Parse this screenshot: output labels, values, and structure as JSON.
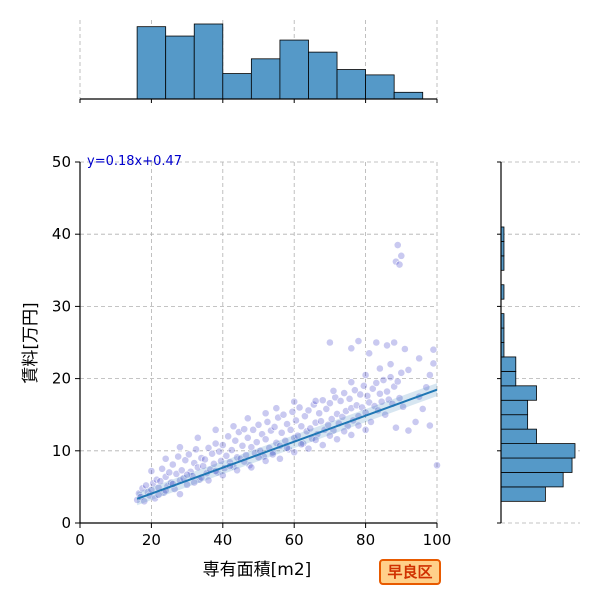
{
  "badge_label": "早良区",
  "chart_data": {
    "type": "scatter",
    "xlabel": "専有面積[m2]",
    "ylabel": "賃料[万円]",
    "xlim": [
      0,
      100
    ],
    "ylim": [
      0,
      50
    ],
    "xticks": [
      0,
      20,
      40,
      60,
      80,
      100
    ],
    "yticks": [
      0,
      10,
      20,
      30,
      40,
      50
    ],
    "grid": true,
    "annotation": "y=0.18x+0.47",
    "regression": {
      "slope": 0.18,
      "intercept": 0.47,
      "x_range": [
        16,
        100
      ]
    },
    "colors": {
      "points": "#3c3cc8",
      "line": "#1f77b4",
      "hist": "#5599c8"
    },
    "points": [
      [
        16,
        3.2
      ],
      [
        16.5,
        4.1
      ],
      [
        17,
        3.6
      ],
      [
        17.5,
        4.8
      ],
      [
        18,
        3.0
      ],
      [
        18.5,
        5.2
      ],
      [
        19,
        4.3
      ],
      [
        19.5,
        3.8
      ],
      [
        20,
        4.6
      ],
      [
        20.5,
        5.5
      ],
      [
        21,
        3.4
      ],
      [
        21.5,
        6.0
      ],
      [
        22,
        4.9
      ],
      [
        22.5,
        5.8
      ],
      [
        23,
        7.5
      ],
      [
        23.5,
        4.2
      ],
      [
        24,
        6.4
      ],
      [
        24.5,
        5.1
      ],
      [
        25,
        7.0
      ],
      [
        25.5,
        5.6
      ],
      [
        26,
        8.1
      ],
      [
        26.5,
        4.7
      ],
      [
        27,
        6.8
      ],
      [
        27.5,
        9.2
      ],
      [
        28,
        5.9
      ],
      [
        28.5,
        7.3
      ],
      [
        29,
        6.2
      ],
      [
        29.5,
        8.7
      ],
      [
        30,
        5.3
      ],
      [
        30.5,
        9.5
      ],
      [
        31,
        7.1
      ],
      [
        31.5,
        6.5
      ],
      [
        32,
        8.3
      ],
      [
        32.5,
        10.2
      ],
      [
        33,
        7.7
      ],
      [
        33.5,
        6.0
      ],
      [
        34,
        9.0
      ],
      [
        34.5,
        7.9
      ],
      [
        35,
        8.8
      ],
      [
        35.5,
        6.9
      ],
      [
        36,
        10.4
      ],
      [
        36.5,
        7.4
      ],
      [
        37,
        9.6
      ],
      [
        37.5,
        8.2
      ],
      [
        38,
        11.0
      ],
      [
        38.5,
        7.0
      ],
      [
        39,
        9.9
      ],
      [
        39.5,
        8.6
      ],
      [
        40,
        10.8
      ],
      [
        40.5,
        7.6
      ],
      [
        41,
        9.3
      ],
      [
        41.5,
        12.0
      ],
      [
        42,
        8.4
      ],
      [
        42.5,
        10.1
      ],
      [
        43,
        7.8
      ],
      [
        43.5,
        11.4
      ],
      [
        44,
        9.1
      ],
      [
        44.5,
        12.6
      ],
      [
        45,
        8.9
      ],
      [
        45.5,
        10.7
      ],
      [
        46,
        13.0
      ],
      [
        46.5,
        9.4
      ],
      [
        47,
        11.8
      ],
      [
        47.5,
        8.0
      ],
      [
        48,
        10.5
      ],
      [
        48.5,
        12.9
      ],
      [
        49,
        9.7
      ],
      [
        49.5,
        11.2
      ],
      [
        50,
        13.6
      ],
      [
        50.5,
        10.0
      ],
      [
        51,
        12.3
      ],
      [
        51.5,
        9.2
      ],
      [
        52,
        11.6
      ],
      [
        52.5,
        14.0
      ],
      [
        53,
        10.4
      ],
      [
        53.5,
        12.8
      ],
      [
        54,
        9.8
      ],
      [
        54.5,
        13.3
      ],
      [
        55,
        11.1
      ],
      [
        55.5,
        14.6
      ],
      [
        56,
        10.7
      ],
      [
        56.5,
        12.5
      ],
      [
        57,
        15.0
      ],
      [
        57.5,
        11.4
      ],
      [
        58,
        13.7
      ],
      [
        58.5,
        10.2
      ],
      [
        59,
        12.9
      ],
      [
        59.5,
        15.4
      ],
      [
        60,
        11.8
      ],
      [
        60.5,
        14.2
      ],
      [
        61,
        12.1
      ],
      [
        61.5,
        16.0
      ],
      [
        62,
        13.4
      ],
      [
        62.5,
        11.0
      ],
      [
        63,
        14.8
      ],
      [
        63.5,
        12.7
      ],
      [
        64,
        15.6
      ],
      [
        64.5,
        13.1
      ],
      [
        65,
        11.7
      ],
      [
        65.5,
        16.4
      ],
      [
        66,
        13.9
      ],
      [
        66.5,
        12.3
      ],
      [
        67,
        15.2
      ],
      [
        67.5,
        14.1
      ],
      [
        68,
        17.0
      ],
      [
        68.5,
        12.9
      ],
      [
        69,
        15.8
      ],
      [
        69.5,
        13.6
      ],
      [
        70,
        16.6
      ],
      [
        70.5,
        14.4
      ],
      [
        71,
        12.8
      ],
      [
        71.5,
        17.4
      ],
      [
        72,
        15.1
      ],
      [
        72.5,
        13.8
      ],
      [
        73,
        16.9
      ],
      [
        73.5,
        14.7
      ],
      [
        74,
        18.0
      ],
      [
        74.5,
        15.5
      ],
      [
        75,
        13.4
      ],
      [
        75.5,
        17.2
      ],
      [
        76,
        15.9
      ],
      [
        76.5,
        14.2
      ],
      [
        77,
        18.4
      ],
      [
        77.5,
        16.3
      ],
      [
        78,
        14.8
      ],
      [
        78.5,
        17.8
      ],
      [
        79,
        16.0
      ],
      [
        79.5,
        19.0
      ],
      [
        80,
        15.3
      ],
      [
        80.5,
        17.6
      ],
      [
        81,
        16.7
      ],
      [
        81.5,
        14.0
      ],
      [
        82,
        18.6
      ],
      [
        82.5,
        16.2
      ],
      [
        83,
        19.4
      ],
      [
        83.5,
        15.6
      ],
      [
        84,
        17.9
      ],
      [
        84.5,
        16.8
      ],
      [
        85,
        19.8
      ],
      [
        85.5,
        15.0
      ],
      [
        86,
        18.2
      ],
      [
        86.5,
        17.1
      ],
      [
        87,
        20.2
      ],
      [
        87.5,
        16.5
      ],
      [
        88,
        18.9
      ],
      [
        88.5,
        13.2
      ],
      [
        89,
        19.6
      ],
      [
        89.5,
        17.3
      ],
      [
        90,
        20.8
      ],
      [
        90.5,
        16.1
      ],
      [
        22,
        3.9
      ],
      [
        24,
        4.5
      ],
      [
        26,
        5.4
      ],
      [
        28,
        4.0
      ],
      [
        30,
        6.7
      ],
      [
        32,
        5.6
      ],
      [
        34,
        6.3
      ],
      [
        36,
        5.9
      ],
      [
        38,
        7.2
      ],
      [
        40,
        6.6
      ],
      [
        42,
        7.9
      ],
      [
        44,
        7.3
      ],
      [
        46,
        8.5
      ],
      [
        48,
        7.7
      ],
      [
        50,
        9.1
      ],
      [
        52,
        8.6
      ],
      [
        54,
        9.5
      ],
      [
        56,
        8.9
      ],
      [
        58,
        10.4
      ],
      [
        60,
        9.8
      ],
      [
        62,
        10.9
      ],
      [
        64,
        10.3
      ],
      [
        66,
        11.5
      ],
      [
        68,
        10.8
      ],
      [
        70,
        12.1
      ],
      [
        72,
        11.6
      ],
      [
        74,
        12.7
      ],
      [
        76,
        12.2
      ],
      [
        78,
        13.5
      ],
      [
        80,
        12.9
      ],
      [
        20,
        7.2
      ],
      [
        24,
        8.9
      ],
      [
        28,
        10.5
      ],
      [
        33,
        11.8
      ],
      [
        38,
        12.9
      ],
      [
        43,
        13.4
      ],
      [
        47,
        14.5
      ],
      [
        52,
        15.2
      ],
      [
        55,
        15.9
      ],
      [
        60,
        16.8
      ],
      [
        66,
        16.9
      ],
      [
        71,
        18.3
      ],
      [
        76,
        19.5
      ],
      [
        80,
        20.5
      ],
      [
        84,
        21.4
      ],
      [
        87,
        22.0
      ],
      [
        92,
        21.2
      ],
      [
        95,
        22.8
      ],
      [
        98,
        13.5
      ],
      [
        99,
        24.0
      ],
      [
        70,
        25.0
      ],
      [
        76,
        24.2
      ],
      [
        78,
        25.2
      ],
      [
        81,
        23.5
      ],
      [
        83,
        25.0
      ],
      [
        86,
        24.6
      ],
      [
        88,
        25.0
      ],
      [
        91,
        24.1
      ],
      [
        99,
        22.1
      ],
      [
        100,
        8.0
      ],
      [
        89,
        38.5
      ],
      [
        88.5,
        36.2
      ],
      [
        89.5,
        35.8
      ],
      [
        90,
        37.0
      ],
      [
        92,
        12.8
      ],
      [
        94,
        14.0
      ],
      [
        95,
        17.5
      ],
      [
        96,
        15.8
      ],
      [
        97,
        18.8
      ],
      [
        98,
        20.5
      ]
    ],
    "hist_x": {
      "bins": [
        [
          16,
          24
        ],
        [
          24,
          32
        ],
        [
          32,
          40
        ],
        [
          40,
          48
        ],
        [
          48,
          56
        ],
        [
          56,
          64
        ],
        [
          64,
          72
        ],
        [
          72,
          80
        ],
        [
          80,
          88
        ],
        [
          88,
          96
        ],
        [
          96,
          100
        ]
      ],
      "counts": [
        54,
        47,
        56,
        19,
        30,
        44,
        35,
        22,
        18,
        5,
        0
      ]
    },
    "hist_y": {
      "bins": [
        [
          3,
          5
        ],
        [
          5,
          7
        ],
        [
          7,
          9
        ],
        [
          9,
          11
        ],
        [
          11,
          13
        ],
        [
          13,
          15
        ],
        [
          15,
          17
        ],
        [
          17,
          19
        ],
        [
          19,
          21
        ],
        [
          21,
          23
        ],
        [
          23,
          25
        ],
        [
          25,
          27
        ],
        [
          27,
          29
        ],
        [
          29,
          31
        ],
        [
          31,
          33
        ],
        [
          33,
          35
        ],
        [
          35,
          37
        ],
        [
          37,
          39
        ],
        [
          39,
          41
        ]
      ],
      "counts": [
        15,
        21,
        24,
        25,
        12,
        9,
        9,
        12,
        5,
        5,
        1,
        1,
        1,
        0,
        1,
        0,
        1,
        1,
        1
      ]
    }
  }
}
